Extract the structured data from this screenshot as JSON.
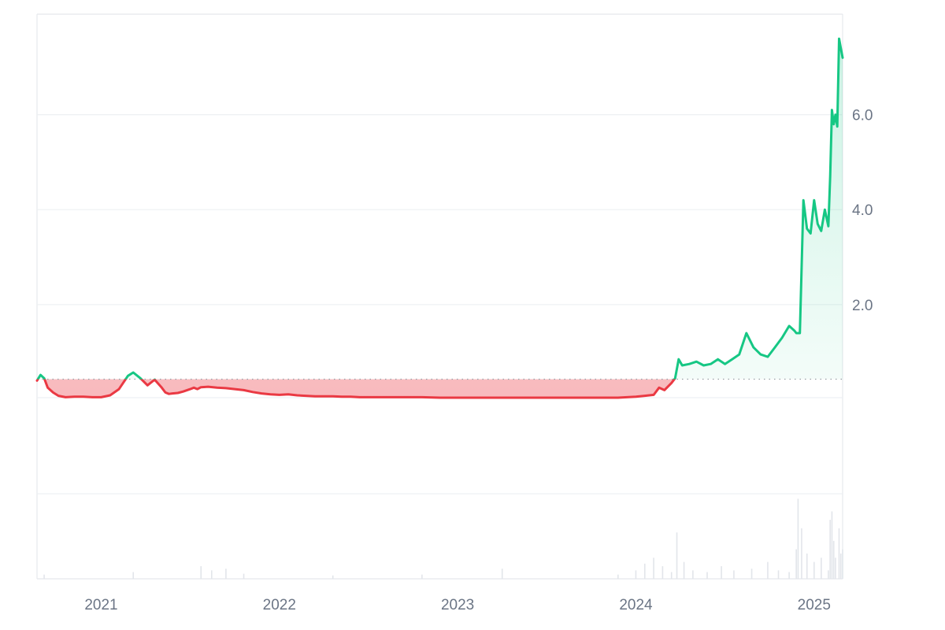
{
  "chart_data": {
    "type": "area",
    "baseline": 0.43,
    "y_ticks": [
      "2.0",
      "4.0",
      "6.0"
    ],
    "y_tick_values": [
      2.0,
      4.0,
      6.0
    ],
    "x_ticks": [
      "2021",
      "2022",
      "2023",
      "2024",
      "2025"
    ],
    "x_tick_values": [
      2021.0,
      2022.0,
      2023.0,
      2024.0,
      2025.0
    ],
    "xlim": [
      2020.64,
      2025.16
    ],
    "ylim": [
      0.04,
      7.8
    ],
    "grid": true,
    "colors": {
      "up": "#16c784",
      "down": "#ea3943",
      "up_fill": "#16c784",
      "down_fill": "#ea3943",
      "grid": "#eef0f3",
      "baseline": "#9aa0a6",
      "volume": "#e2e5ea"
    },
    "price": {
      "x": [
        2020.64,
        2020.66,
        2020.68,
        2020.7,
        2020.73,
        2020.76,
        2020.8,
        2020.85,
        2020.9,
        2020.95,
        2021.0,
        2021.05,
        2021.1,
        2021.15,
        2021.18,
        2021.22,
        2021.26,
        2021.3,
        2021.34,
        2021.36,
        2021.38,
        2021.4,
        2021.43,
        2021.46,
        2021.5,
        2021.52,
        2021.54,
        2021.56,
        2021.6,
        2021.65,
        2021.7,
        2021.75,
        2021.8,
        2021.85,
        2021.9,
        2021.95,
        2022.0,
        2022.05,
        2022.1,
        2022.2,
        2022.3,
        2022.35,
        2022.4,
        2022.45,
        2022.5,
        2022.6,
        2022.7,
        2022.8,
        2022.9,
        2023.0,
        2023.1,
        2023.2,
        2023.3,
        2023.4,
        2023.5,
        2023.6,
        2023.7,
        2023.8,
        2023.9,
        2023.95,
        2024.0,
        2024.05,
        2024.1,
        2024.13,
        2024.16,
        2024.2,
        2024.22,
        2024.24,
        2024.26,
        2024.3,
        2024.34,
        2024.38,
        2024.42,
        2024.46,
        2024.5,
        2024.54,
        2024.58,
        2024.62,
        2024.66,
        2024.7,
        2024.74,
        2024.78,
        2024.82,
        2024.86,
        2024.89,
        2024.9,
        2024.92,
        2024.94,
        2024.96,
        2024.98,
        2025.0,
        2025.02,
        2025.04,
        2025.06,
        2025.08,
        2025.09,
        2025.1,
        2025.11,
        2025.12,
        2025.13,
        2025.14,
        2025.15,
        2025.16
      ],
      "y": [
        0.4,
        0.52,
        0.45,
        0.25,
        0.15,
        0.08,
        0.05,
        0.06,
        0.06,
        0.05,
        0.05,
        0.09,
        0.22,
        0.5,
        0.57,
        0.45,
        0.3,
        0.42,
        0.25,
        0.15,
        0.12,
        0.13,
        0.14,
        0.17,
        0.22,
        0.25,
        0.22,
        0.26,
        0.27,
        0.25,
        0.24,
        0.22,
        0.2,
        0.16,
        0.13,
        0.11,
        0.1,
        0.11,
        0.09,
        0.07,
        0.07,
        0.06,
        0.06,
        0.05,
        0.05,
        0.05,
        0.05,
        0.05,
        0.04,
        0.04,
        0.04,
        0.04,
        0.04,
        0.04,
        0.04,
        0.04,
        0.04,
        0.04,
        0.04,
        0.05,
        0.06,
        0.08,
        0.1,
        0.25,
        0.2,
        0.35,
        0.45,
        0.85,
        0.72,
        0.75,
        0.8,
        0.72,
        0.75,
        0.85,
        0.75,
        0.85,
        0.95,
        1.4,
        1.1,
        0.95,
        0.9,
        1.1,
        1.3,
        1.55,
        1.45,
        1.4,
        1.4,
        4.2,
        3.6,
        3.5,
        4.2,
        3.7,
        3.55,
        4.0,
        3.65,
        4.7,
        6.1,
        5.8,
        6.0,
        5.75,
        7.6,
        7.4,
        7.2
      ]
    },
    "volume": [
      [
        2020.68,
        0.05
      ],
      [
        2021.18,
        0.08
      ],
      [
        2021.56,
        0.15
      ],
      [
        2021.62,
        0.1
      ],
      [
        2021.7,
        0.12
      ],
      [
        2021.8,
        0.06
      ],
      [
        2022.3,
        0.04
      ],
      [
        2022.8,
        0.05
      ],
      [
        2023.25,
        0.12
      ],
      [
        2023.9,
        0.05
      ],
      [
        2024.0,
        0.1
      ],
      [
        2024.05,
        0.18
      ],
      [
        2024.1,
        0.25
      ],
      [
        2024.15,
        0.15
      ],
      [
        2024.2,
        0.08
      ],
      [
        2024.23,
        0.55
      ],
      [
        2024.27,
        0.2
      ],
      [
        2024.32,
        0.1
      ],
      [
        2024.4,
        0.08
      ],
      [
        2024.48,
        0.15
      ],
      [
        2024.55,
        0.1
      ],
      [
        2024.65,
        0.12
      ],
      [
        2024.74,
        0.2
      ],
      [
        2024.8,
        0.1
      ],
      [
        2024.86,
        0.08
      ],
      [
        2024.9,
        0.35
      ],
      [
        2024.91,
        0.95
      ],
      [
        2024.93,
        0.6
      ],
      [
        2024.96,
        0.3
      ],
      [
        2025.0,
        0.2
      ],
      [
        2025.04,
        0.25
      ],
      [
        2025.08,
        0.1
      ],
      [
        2025.09,
        0.7
      ],
      [
        2025.1,
        0.8
      ],
      [
        2025.11,
        0.45
      ],
      [
        2025.12,
        0.25
      ],
      [
        2025.14,
        0.6
      ],
      [
        2025.15,
        0.3
      ],
      [
        2025.16,
        0.35
      ]
    ]
  }
}
